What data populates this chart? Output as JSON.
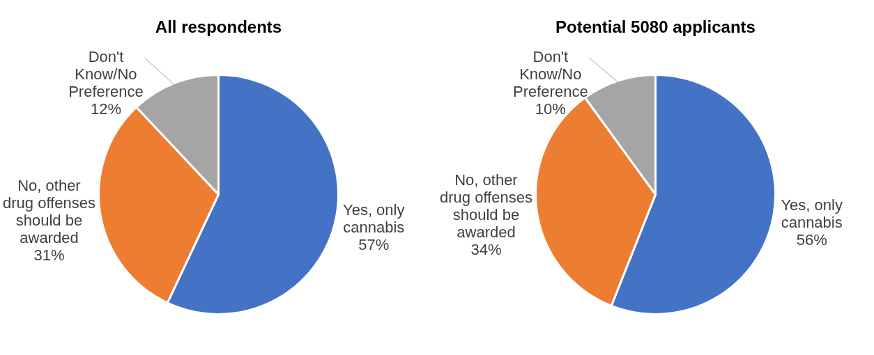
{
  "chart_data": [
    {
      "type": "pie",
      "title": "All respondents",
      "categories": [
        "Yes, only cannabis",
        "No, other drug offenses should be awarded",
        "Don't Know/No Preference"
      ],
      "values": [
        57,
        31,
        12
      ],
      "value_labels": [
        "57%",
        "31%",
        "12%"
      ],
      "colors": [
        "#4472c4",
        "#ed7d31",
        "#a5a5a5"
      ],
      "legend": false
    },
    {
      "type": "pie",
      "title": "Potential 5080 applicants",
      "categories": [
        "Yes, only cannabis",
        "No, other drug offenses should be awarded",
        "Don't Know/No Preference"
      ],
      "values": [
        56,
        34,
        10
      ],
      "value_labels": [
        "56%",
        "34%",
        "10%"
      ],
      "colors": [
        "#4472c4",
        "#ed7d31",
        "#a5a5a5"
      ],
      "legend": false
    }
  ]
}
